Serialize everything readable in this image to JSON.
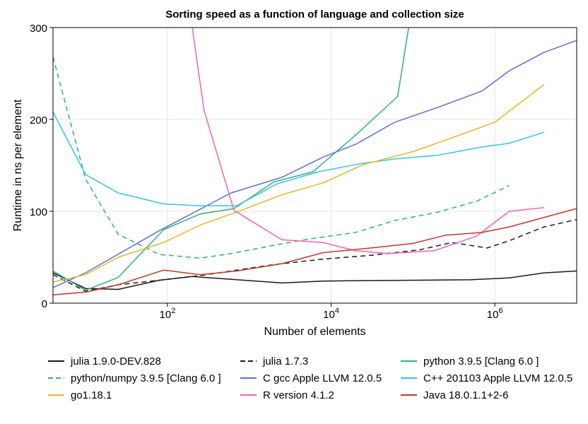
{
  "chart_data": {
    "type": "line",
    "title": "Sorting speed as a function of language and collection size",
    "xlabel": "Number of elements",
    "ylabel": "Runtime in ns per element",
    "xscale": "log10",
    "xlim": [
      4,
      10000000.0
    ],
    "ylim": [
      0,
      300
    ],
    "yticks": [
      0,
      100,
      200,
      300
    ],
    "xticks": [
      {
        "value": 100,
        "base": "10",
        "exp": "2"
      },
      {
        "value": 10000,
        "base": "10",
        "exp": "4"
      },
      {
        "value": 1000000,
        "base": "10",
        "exp": "6"
      }
    ],
    "grid": true,
    "legend_position": "bottom",
    "series": [
      {
        "name": "julia 1.9.0-DEV.828",
        "color": "#1a1a1a",
        "dash": "solid",
        "x": [
          4,
          10,
          25,
          80,
          200,
          600,
          2500,
          8000,
          25000,
          120000,
          500000,
          1500000,
          4000000,
          10000000
        ],
        "y": [
          33,
          16,
          15,
          25,
          29,
          26,
          22,
          24,
          24.5,
          25,
          25.5,
          27.5,
          33,
          35
        ]
      },
      {
        "name": "julia 1.7.3",
        "color": "#1a1a1a",
        "dash": "dashed",
        "x": [
          4,
          10,
          25,
          80,
          250,
          600,
          2000,
          8000,
          30000,
          120000,
          300000,
          800000,
          1500000,
          4000000,
          10000000
        ],
        "y": [
          31,
          13,
          20,
          25,
          30,
          35,
          42,
          48,
          52,
          58,
          66,
          60,
          68,
          83,
          91
        ]
      },
      {
        "name": "python 3.9.5  [Clang 6.0 ]",
        "color": "#2db37a",
        "dash": "solid",
        "x": [
          4,
          10,
          25,
          90,
          250,
          650,
          2000,
          6000,
          20000,
          65000,
          100000
        ],
        "y": [
          35,
          14,
          28,
          80,
          97,
          103,
          132,
          143,
          183,
          225,
          330
        ]
      },
      {
        "name": "python/numpy 3.9.5  [Clang 6.0 ]",
        "color": "#2db37a",
        "dash": "dashed",
        "x": [
          4,
          10,
          25,
          80,
          250,
          600,
          2000,
          5500,
          20000,
          60000,
          200000,
          600000,
          1500000
        ],
        "y": [
          268,
          135,
          75,
          53,
          49,
          54,
          63,
          70,
          77,
          90,
          99,
          111,
          128
        ]
      },
      {
        "name": "C gcc Apple LLVM 12.0.5",
        "color": "#5b6fd6",
        "dash": "solid",
        "x": [
          4,
          10,
          80,
          600,
          2500,
          8000,
          20000,
          60000,
          200000,
          700000,
          1500000,
          4000000,
          10000000
        ],
        "y": [
          17,
          33,
          79,
          120,
          137,
          159,
          173,
          197,
          213,
          231,
          253,
          273,
          286
        ]
      },
      {
        "name": "C++ 201103 Apple LLVM 12.0.5",
        "color": "#33c3ef",
        "dash": "solid",
        "x": [
          4,
          10,
          25,
          90,
          250,
          700,
          2200,
          7000,
          20000,
          60000,
          200000,
          700000,
          1500000,
          4000000
        ],
        "y": [
          208,
          140,
          120,
          108,
          106,
          106,
          130,
          143,
          151,
          157,
          161,
          170,
          174,
          186
        ]
      },
      {
        "name": "go1.18.1",
        "color": "#e3b929",
        "dash": "solid",
        "x": [
          4,
          10,
          25,
          90,
          250,
          800,
          2500,
          8000,
          25000,
          100000,
          300000,
          1000000,
          4000000
        ],
        "y": [
          23,
          31,
          50,
          66,
          85,
          101,
          118,
          131,
          151,
          165,
          180,
          197,
          238
        ]
      },
      {
        "name": "R version 4.1.2",
        "color": "#f062b5",
        "dash": "solid",
        "x": [
          180,
          280,
          650,
          2500,
          8000,
          20000,
          50000,
          180000,
          600000,
          1500000,
          4000000
        ],
        "y": [
          330,
          210,
          101,
          69,
          66,
          57,
          54,
          57,
          73,
          100,
          104
        ]
      },
      {
        "name": "Java 18.0.1.1+2-6",
        "color": "#c0392b",
        "dash": "solid",
        "x": [
          4,
          10,
          25,
          90,
          250,
          700,
          2500,
          8000,
          30000,
          100000,
          250000,
          700000,
          1500000,
          10000000
        ],
        "y": [
          9,
          12,
          20,
          36,
          31,
          35,
          43,
          55,
          60,
          65,
          74,
          77,
          83,
          103
        ]
      }
    ]
  }
}
